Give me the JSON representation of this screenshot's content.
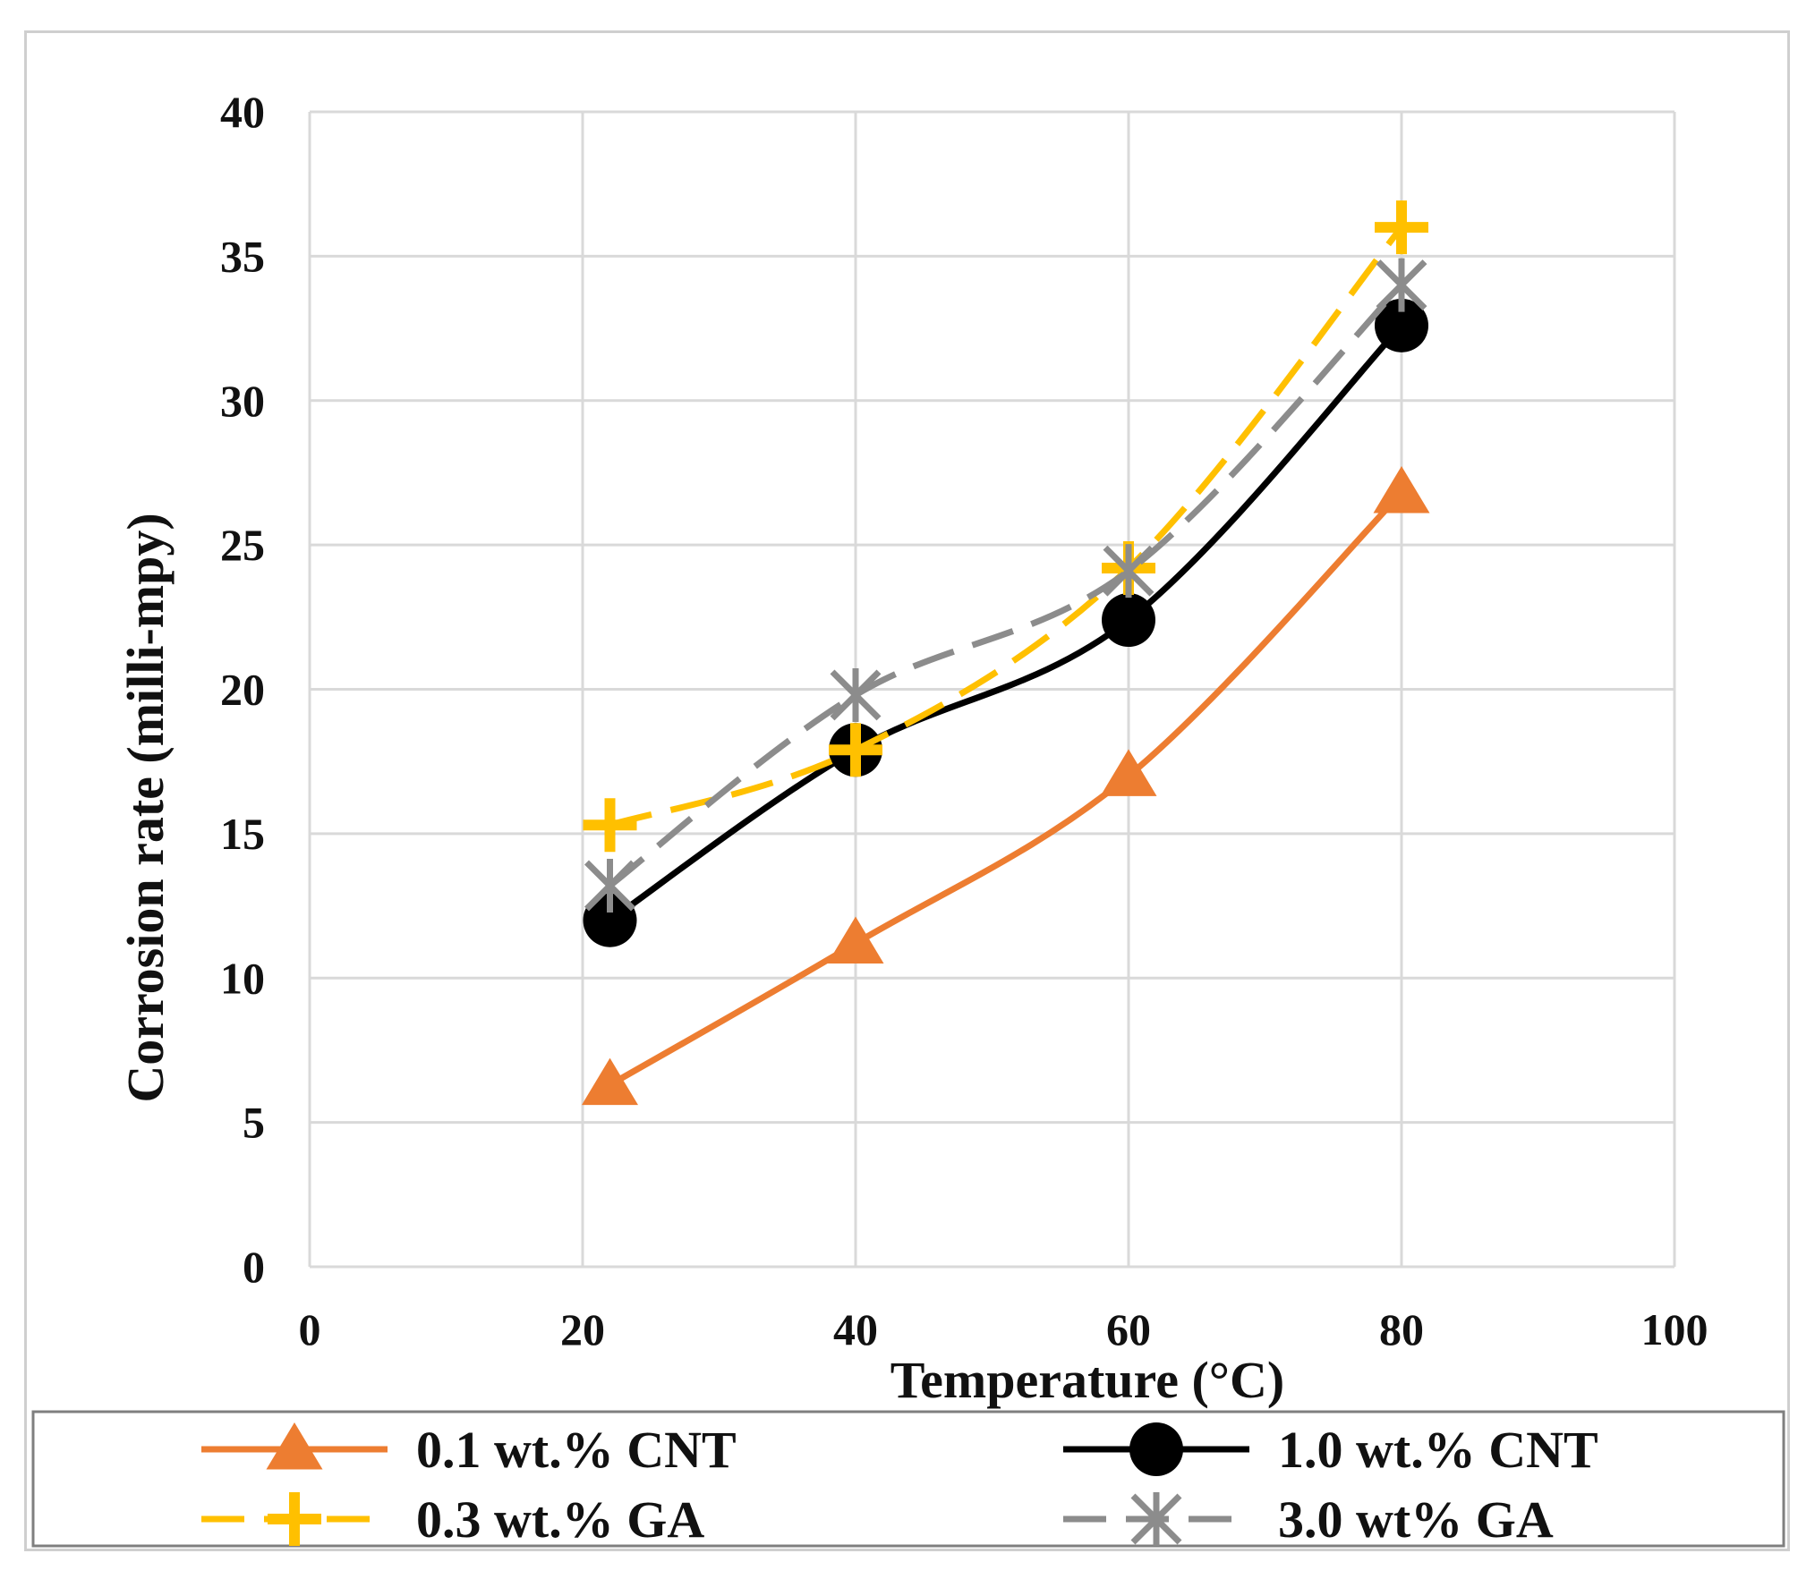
{
  "chart_data": {
    "type": "line",
    "title": "",
    "xlabel": "Temperature (°C)",
    "ylabel": "Corrosion rate (milli-mpy)",
    "xlim": [
      0,
      100
    ],
    "ylim": [
      0,
      40
    ],
    "xticks": [
      0,
      20,
      40,
      60,
      80,
      100
    ],
    "yticks": [
      0,
      5,
      10,
      15,
      20,
      25,
      30,
      35,
      40
    ],
    "grid": true,
    "legend_position": "bottom",
    "series": [
      {
        "name": "0.1 wt.% CNT",
        "color": "#ed7d31",
        "line_style": "solid",
        "marker": "triangle",
        "x": [
          22,
          40,
          60,
          80
        ],
        "y": [
          6.3,
          11.2,
          17.0,
          26.8
        ]
      },
      {
        "name": "1.0 wt.% CNT",
        "color": "#000000",
        "line_style": "solid",
        "marker": "circle",
        "x": [
          22,
          40,
          60,
          80
        ],
        "y": [
          12.0,
          17.9,
          22.4,
          32.6
        ]
      },
      {
        "name": "0.3 wt.% GA",
        "color": "#ffc000",
        "line_style": "dashed",
        "marker": "plus",
        "x": [
          22,
          40,
          60,
          80
        ],
        "y": [
          15.3,
          17.9,
          24.2,
          36.0
        ]
      },
      {
        "name": "3.0 wt% GA",
        "color": "#8c8c8c",
        "line_style": "dashed",
        "marker": "star",
        "x": [
          22,
          40,
          60,
          80
        ],
        "y": [
          13.2,
          19.8,
          24.1,
          34.0
        ]
      }
    ]
  }
}
